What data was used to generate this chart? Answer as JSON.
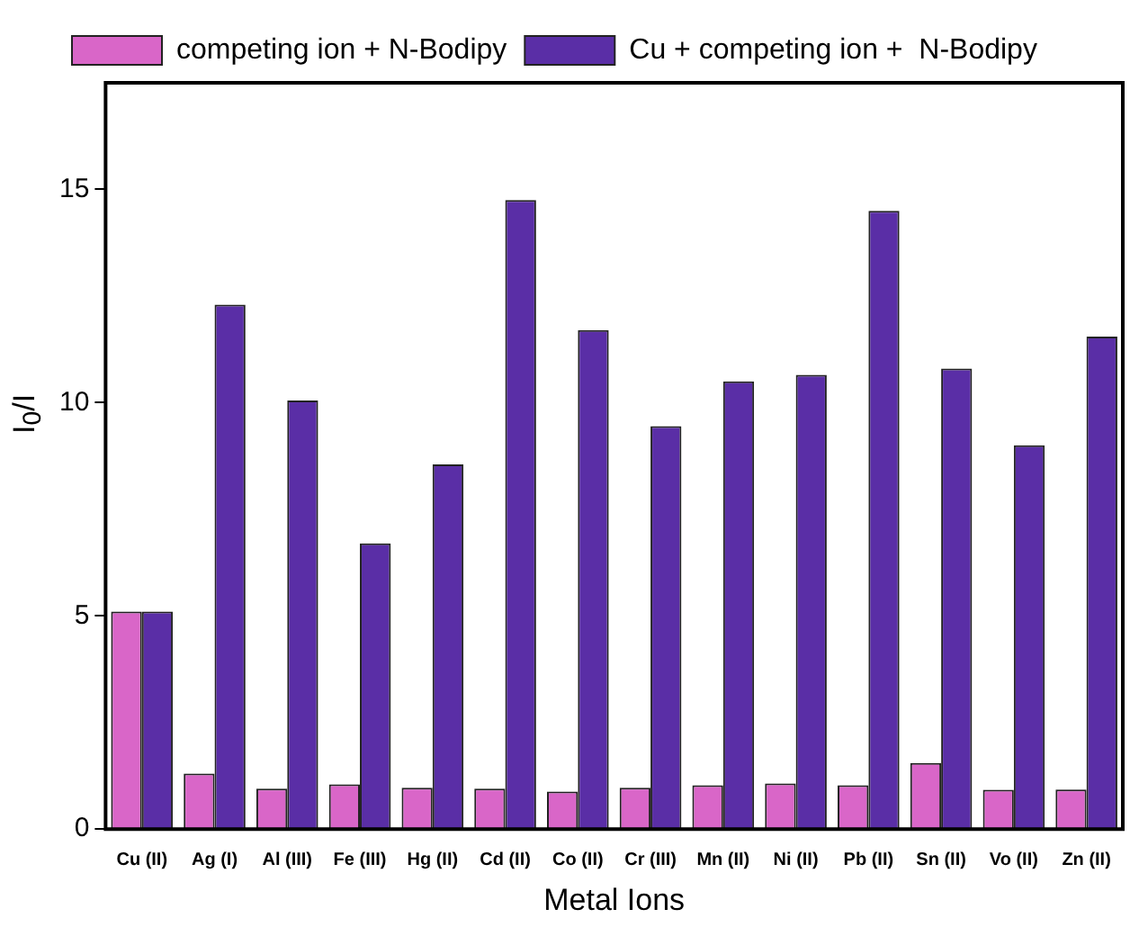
{
  "chart_data": {
    "type": "bar",
    "xlabel": "Metal Ions",
    "ylabel": "I$_{0}$/I",
    "categories": [
      "Cu (II)",
      "Ag (I)",
      "Al (III)",
      "Fe (III)",
      "Hg (II)",
      "Cd (II)",
      "Co (II)",
      "Cr (III)",
      "Mn (II)",
      "Ni (II)",
      "Pb (II)",
      "Sn (II)",
      "Vo (II)",
      "Zn (II)"
    ],
    "series": [
      {
        "name": "competing ion + N-Bodipy",
        "color": "#d966c8",
        "values": [
          5.1,
          1.3,
          0.95,
          1.05,
          0.97,
          0.95,
          0.88,
          0.97,
          1.03,
          1.07,
          1.03,
          1.55,
          0.92,
          0.93
        ]
      },
      {
        "name": "Cu + competing ion +  N-Bodipy",
        "color": "#5a2ea6",
        "values": [
          5.1,
          12.3,
          10.05,
          6.7,
          8.55,
          14.75,
          11.7,
          9.45,
          10.5,
          10.65,
          14.5,
          10.8,
          9.0,
          11.55
        ]
      }
    ],
    "ylim": [
      0,
      17.5
    ],
    "yticks": [
      0,
      5,
      10,
      15
    ],
    "grid": false,
    "legend": "top left"
  }
}
